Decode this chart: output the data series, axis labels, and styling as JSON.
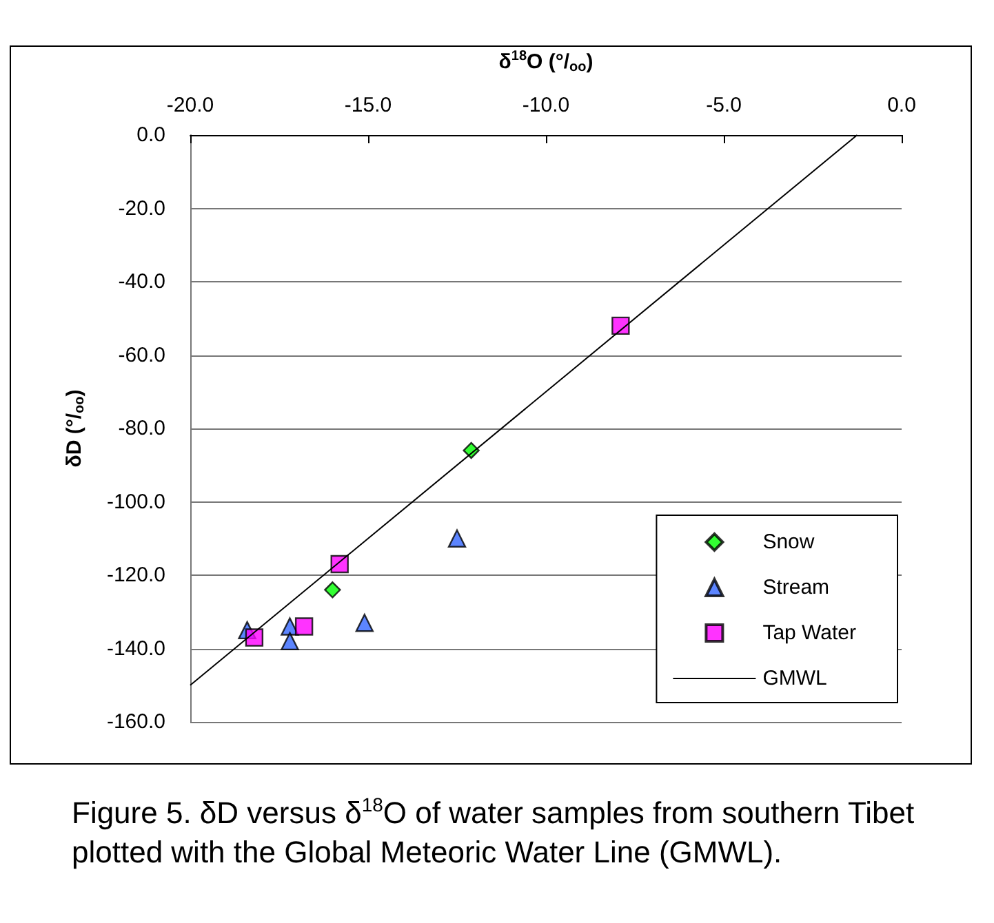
{
  "chart_data": {
    "type": "scatter",
    "xlabel": "δ$^{18}$O (°/$_{oo}$)",
    "ylabel": "δD (°/$_{oo}$)",
    "annotations": [
      "Figure 5.  δD versus δ$^{18}$O of water samples from southern Tibet plotted with the Global Meteoric Water Line (GMWL)."
    ],
    "xlim": [
      -20,
      0
    ],
    "xticks": [
      {
        "value": -20,
        "label": "-20.0"
      },
      {
        "value": -15,
        "label": "-15.0"
      },
      {
        "value": -10,
        "label": "-10.0"
      },
      {
        "value": -5,
        "label": "-5.0"
      },
      {
        "value": 0,
        "label": "0.0"
      }
    ],
    "ylim": [
      -160,
      0
    ],
    "yticks": [
      {
        "value": -160,
        "label": "-160.0"
      },
      {
        "value": -140,
        "label": "-140.0"
      },
      {
        "value": -120,
        "label": "-120.0"
      },
      {
        "value": -100,
        "label": "-100.0"
      },
      {
        "value": -80,
        "label": "-80.0"
      },
      {
        "value": -60,
        "label": "-60.0"
      },
      {
        "value": -40,
        "label": "-40.0"
      },
      {
        "value": -20,
        "label": "-20.0"
      },
      {
        "value": 0,
        "label": "0.0"
      }
    ],
    "grid": "y",
    "legend": "bottom right",
    "series": [
      {
        "name": "Snow",
        "marker": "diamond",
        "color": "#00ff00",
        "x": [
          -12.1,
          -16.0
        ],
        "values": [
          -86,
          -124
        ]
      },
      {
        "name": "Stream",
        "marker": "triangle",
        "color": "#3366ff",
        "x": [
          -18.4,
          -17.2,
          -17.2,
          -15.1,
          -12.5
        ],
        "values": [
          -135,
          -134,
          -138,
          -133,
          -110
        ]
      },
      {
        "name": "Tap Water",
        "marker": "square",
        "color": "#ff00ff",
        "x": [
          -18.2,
          -16.8,
          -15.8,
          -7.9
        ],
        "values": [
          -137,
          -134,
          -117,
          -52
        ]
      },
      {
        "name": "GMWL",
        "type": "line",
        "marker": "none",
        "line_style": "solid",
        "color": "#000000",
        "x": [
          -20,
          -1.25
        ],
        "values": [
          -150,
          0
        ]
      }
    ]
  }
}
